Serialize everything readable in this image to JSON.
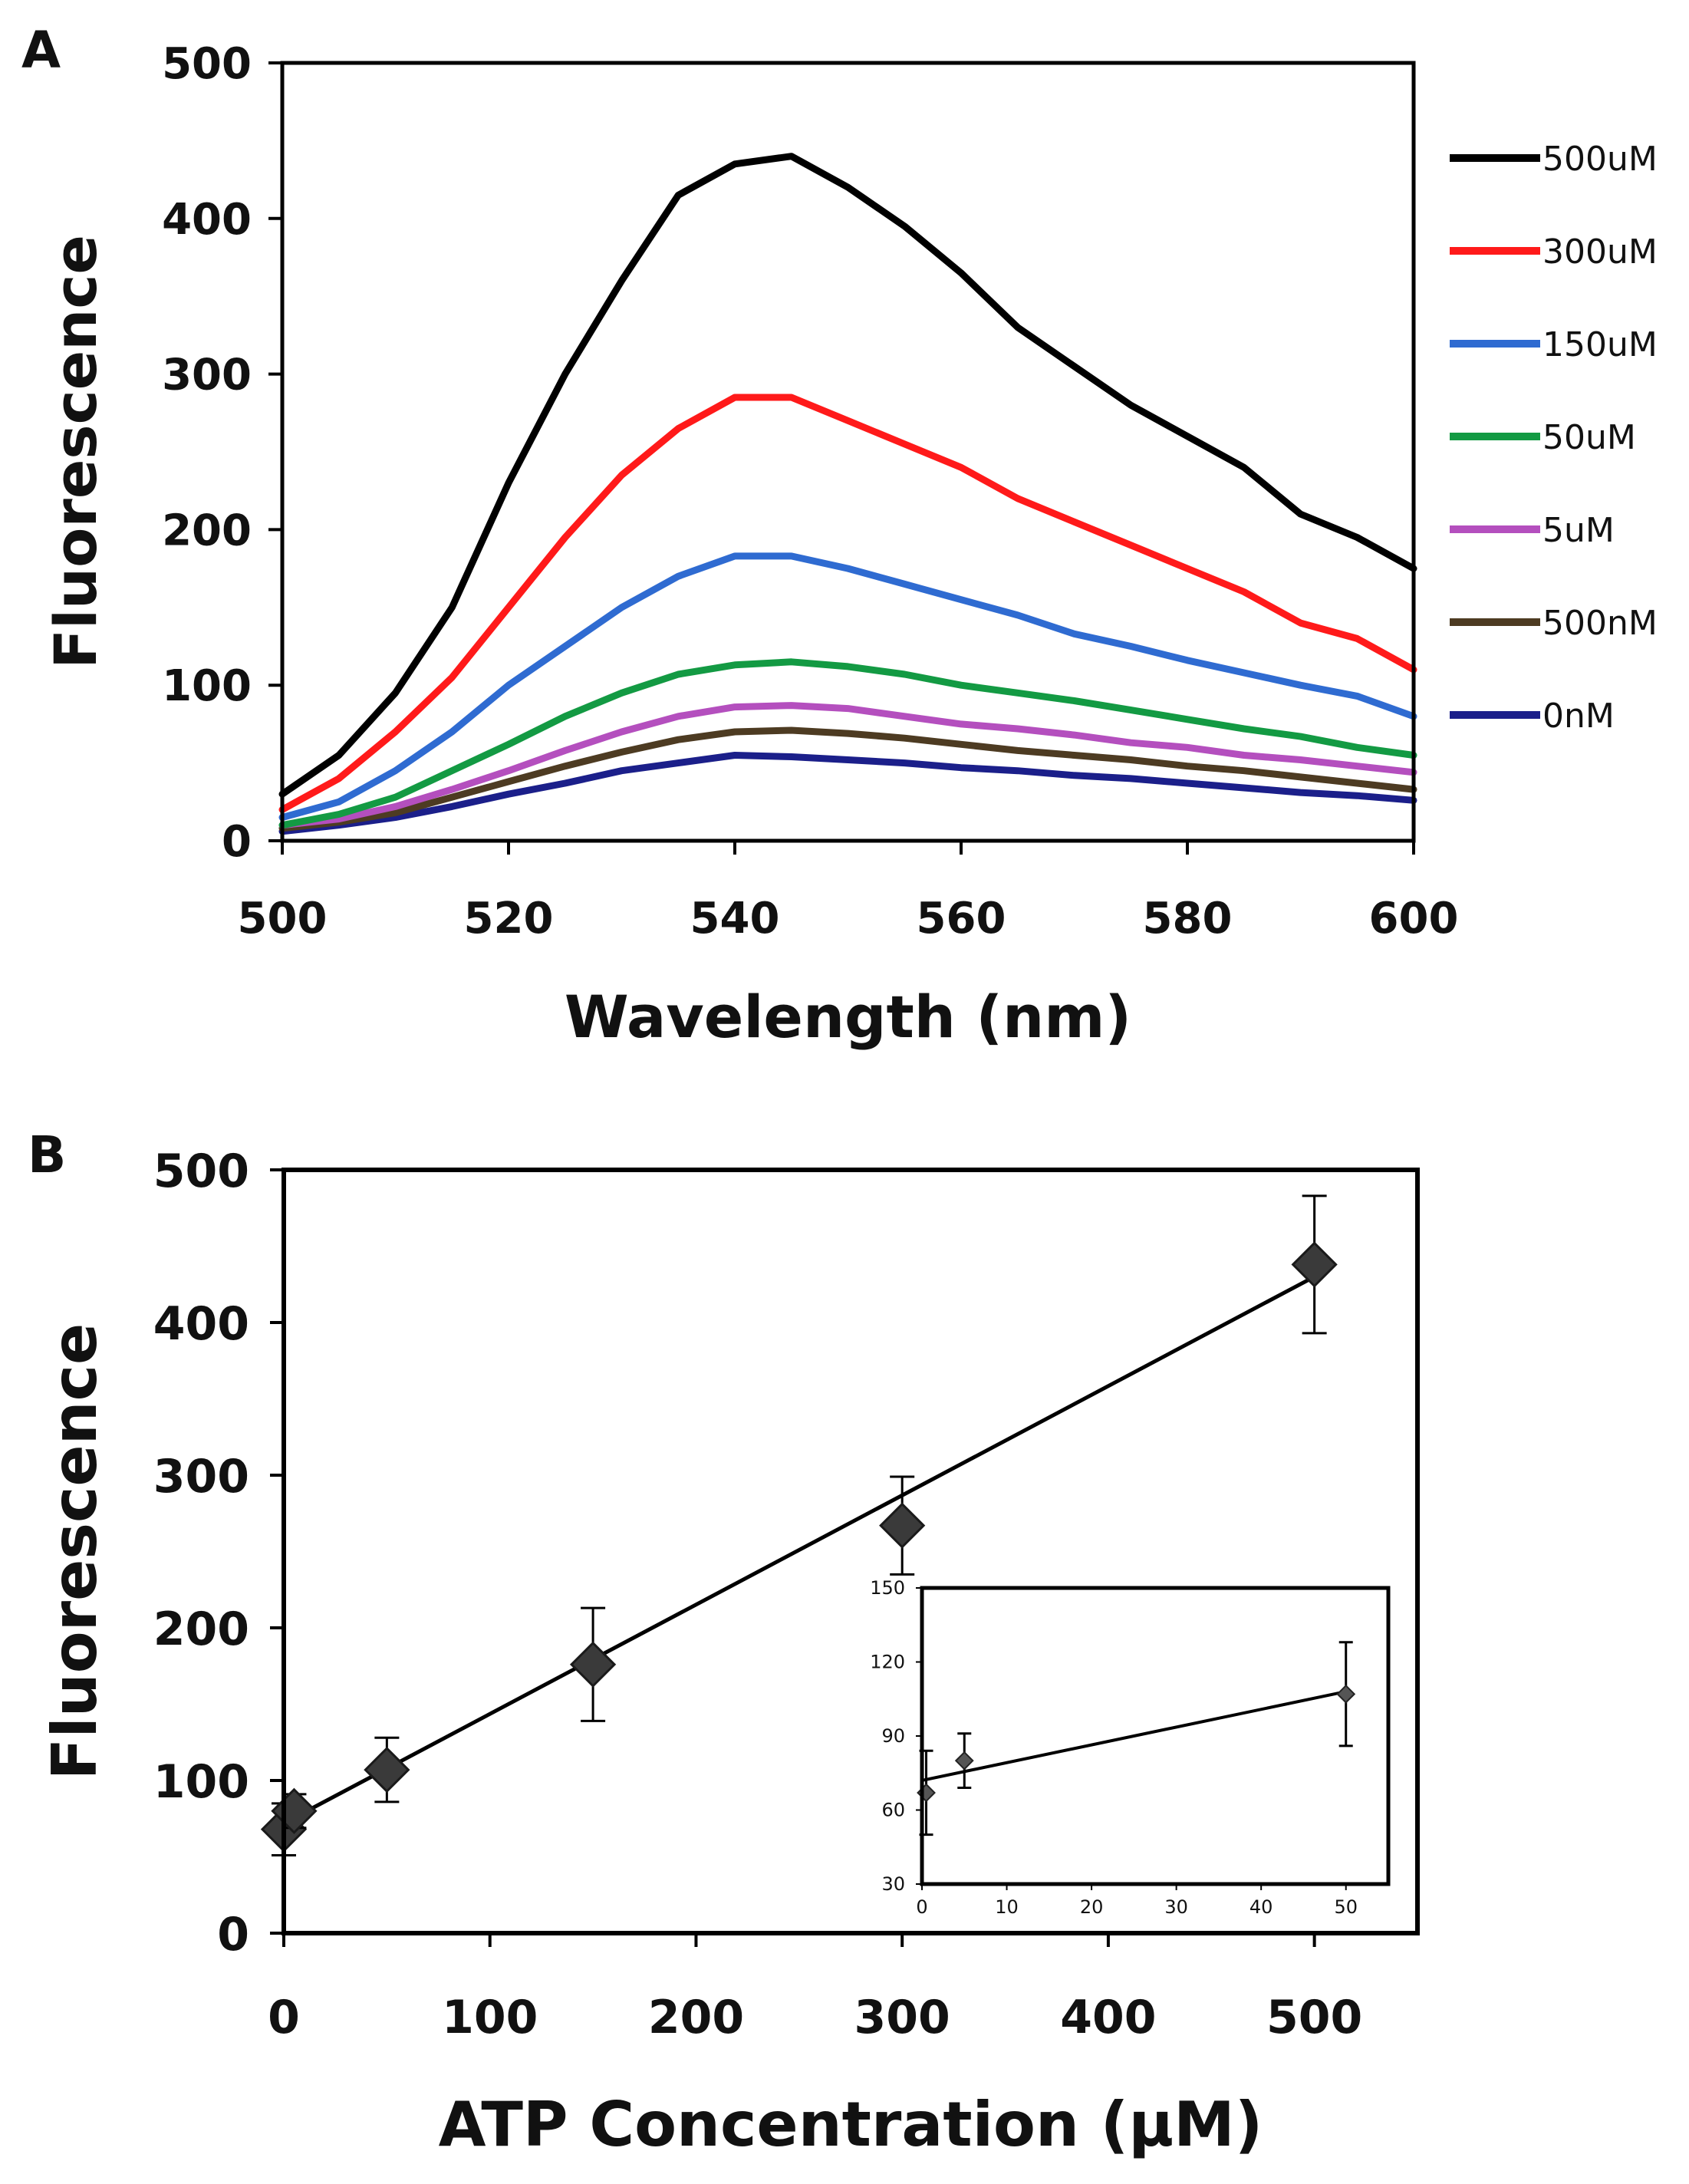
{
  "chart_data": [
    {
      "panel": "A",
      "type": "line",
      "xlabel": "Wavelength (nm)",
      "ylabel": "Fluorescence",
      "xlim": [
        500,
        600
      ],
      "ylim": [
        0,
        500
      ],
      "xticks": [
        "500",
        "520",
        "540",
        "560",
        "580",
        "600"
      ],
      "yticks": [
        "0",
        "100",
        "200",
        "300",
        "400",
        "500"
      ],
      "legend_position": "right",
      "x": [
        500,
        505,
        510,
        515,
        520,
        525,
        530,
        535,
        540,
        545,
        550,
        555,
        560,
        565,
        570,
        575,
        580,
        585,
        590,
        595,
        600
      ],
      "series": [
        {
          "name": "500uM",
          "color": "#000000",
          "values": [
            30,
            55,
            95,
            150,
            230,
            300,
            360,
            415,
            435,
            440,
            420,
            395,
            365,
            330,
            305,
            280,
            260,
            240,
            210,
            195,
            175
          ]
        },
        {
          "name": "300uM",
          "color": "#ff1a1a",
          "values": [
            20,
            40,
            70,
            105,
            150,
            195,
            235,
            265,
            285,
            285,
            270,
            255,
            240,
            220,
            205,
            190,
            175,
            160,
            140,
            130,
            110
          ]
        },
        {
          "name": "150uM",
          "color": "#2f6bd1",
          "values": [
            15,
            25,
            45,
            70,
            100,
            125,
            150,
            170,
            183,
            183,
            175,
            165,
            155,
            145,
            133,
            125,
            116,
            108,
            100,
            93,
            80
          ]
        },
        {
          "name": "50uM",
          "color": "#139a43",
          "values": [
            10,
            17,
            28,
            45,
            62,
            80,
            95,
            107,
            113,
            115,
            112,
            107,
            100,
            95,
            90,
            84,
            78,
            72,
            67,
            60,
            55
          ]
        },
        {
          "name": "5uM",
          "color": "#b44fbe",
          "values": [
            10,
            14,
            22,
            33,
            45,
            58,
            70,
            80,
            86,
            87,
            85,
            80,
            75,
            72,
            68,
            63,
            60,
            55,
            52,
            48,
            44
          ]
        },
        {
          "name": "500nM",
          "color": "#4d3b22",
          "values": [
            8,
            12,
            18,
            28,
            38,
            48,
            57,
            65,
            70,
            71,
            69,
            66,
            62,
            58,
            55,
            52,
            48,
            45,
            41,
            37,
            33
          ]
        },
        {
          "name": "0nM",
          "color": "#1b1f8a",
          "values": [
            6,
            10,
            15,
            22,
            30,
            37,
            45,
            50,
            55,
            54,
            52,
            50,
            47,
            45,
            42,
            40,
            37,
            34,
            31,
            29,
            26
          ]
        }
      ]
    },
    {
      "panel": "B",
      "type": "scatter",
      "xlabel": "ATP Concentration (μM)",
      "ylabel": "Fluorescence",
      "xlim": [
        0,
        550
      ],
      "ylim": [
        0,
        500
      ],
      "xticks": [
        "0",
        "100",
        "200",
        "300",
        "400",
        "500"
      ],
      "yticks": [
        "0",
        "100",
        "200",
        "300",
        "400",
        "500"
      ],
      "trendline": {
        "x": [
          0,
          500
        ],
        "y": [
          72,
          430
        ]
      },
      "points": [
        {
          "x": 0,
          "y": 68,
          "err": 17
        },
        {
          "x": 5,
          "y": 80,
          "err": 11
        },
        {
          "x": 50,
          "y": 107,
          "err": 21
        },
        {
          "x": 150,
          "y": 176,
          "err": 37
        },
        {
          "x": 300,
          "y": 267,
          "err": 32
        },
        {
          "x": 500,
          "y": 438,
          "err": 45
        }
      ],
      "inset": {
        "type": "scatter",
        "xlim": [
          0,
          55
        ],
        "ylim": [
          30,
          150
        ],
        "xticks": [
          "0",
          "10",
          "20",
          "30",
          "40",
          "50"
        ],
        "yticks": [
          "30",
          "60",
          "90",
          "120",
          "150"
        ],
        "trendline": {
          "x": [
            0,
            50
          ],
          "y": [
            72,
            108
          ]
        },
        "points": [
          {
            "x": 0.5,
            "y": 67,
            "err": 17
          },
          {
            "x": 5,
            "y": 80,
            "err": 11
          },
          {
            "x": 50,
            "y": 107,
            "err": 21
          }
        ]
      }
    }
  ],
  "labels": {
    "panel_a": "A",
    "panel_b": "B"
  }
}
